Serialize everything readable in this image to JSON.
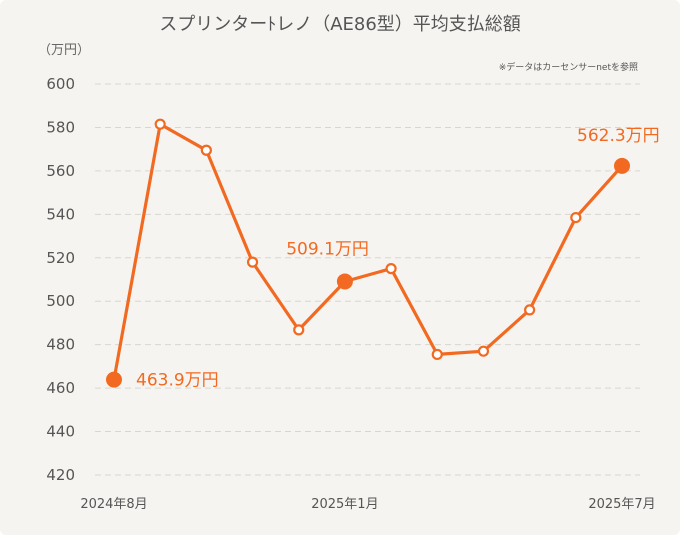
{
  "chart_data": {
    "type": "line",
    "title": "スプリンターﾄレノ（AE86型）平均支払総額",
    "unit_label": "（万円）",
    "note": "※データはカーセンサーnetを参照",
    "x": [
      "2024-08",
      "2024-09",
      "2024-10",
      "2024-11",
      "2024-12",
      "2025-01",
      "2025-02",
      "2025-03",
      "2025-04",
      "2025-05",
      "2025-06",
      "2025-07"
    ],
    "xtick_labels": [
      {
        "x": "2024-08",
        "label": "2024年8月"
      },
      {
        "x": "2025-01",
        "label": "2025年1月"
      },
      {
        "x": "2025-07",
        "label": "2025年7月"
      }
    ],
    "series": [
      {
        "values": [
          463.9,
          581.5,
          569.5,
          518.0,
          486.8,
          509.1,
          515.0,
          475.5,
          477.0,
          496.0,
          538.5,
          562.3
        ]
      }
    ],
    "ylim": [
      420,
      600
    ],
    "yticks": [
      420,
      440,
      460,
      480,
      500,
      520,
      540,
      560,
      580,
      600
    ],
    "grid": true,
    "highlight_points": [
      {
        "x": "2024-08",
        "label": "463.9万円"
      },
      {
        "x": "2025-01",
        "label": "509.1万円"
      },
      {
        "x": "2025-07",
        "label": "562.3万円"
      }
    ],
    "colors": {
      "line": "#f26a21",
      "label": "#f26a21",
      "grid": "#d9d6d1"
    }
  }
}
